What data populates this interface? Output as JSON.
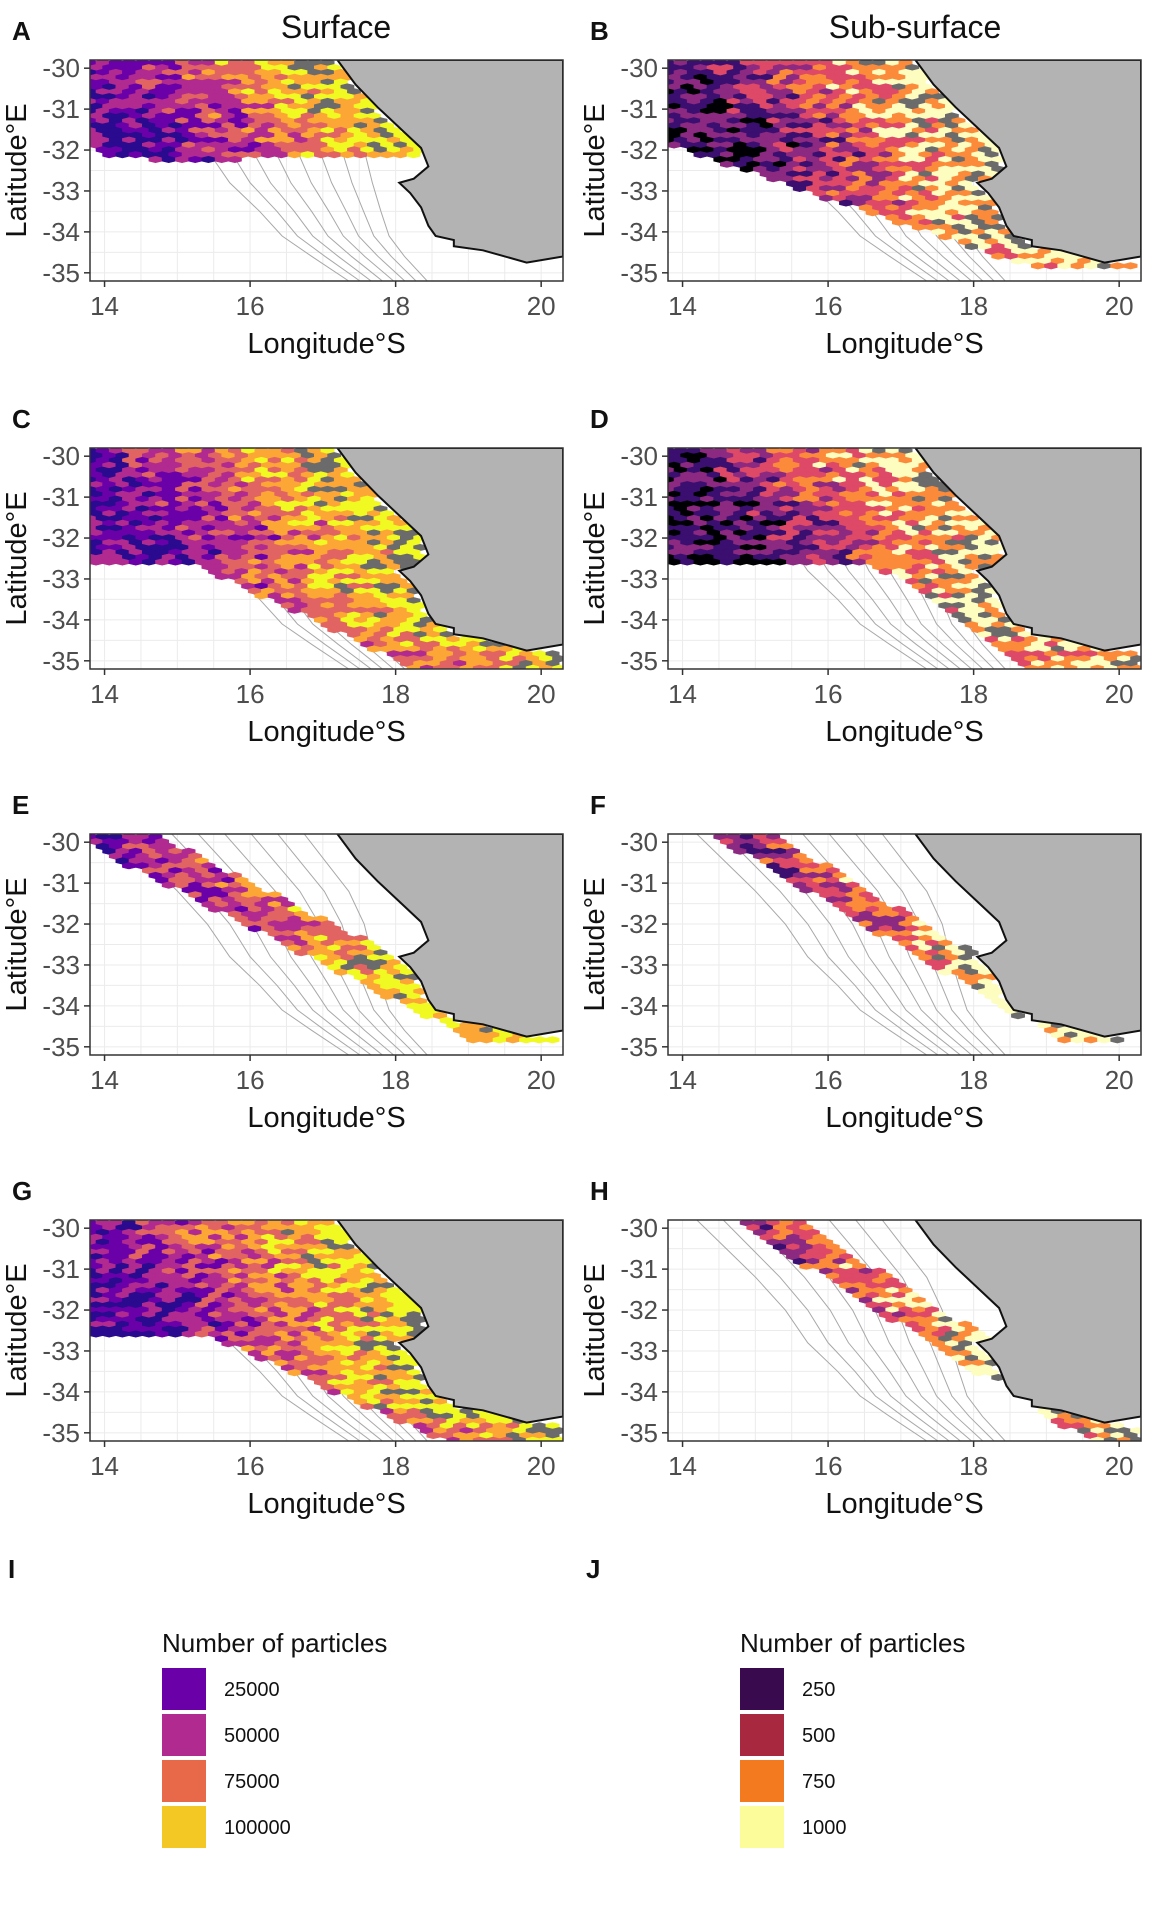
{
  "column_titles": [
    "Surface",
    "Sub-surface"
  ],
  "panels": [
    {
      "letter": "A",
      "palette": "surface",
      "layer": "surface",
      "scenario": 0
    },
    {
      "letter": "B",
      "palette": "subsurface",
      "layer": "subsurface",
      "scenario": 0
    },
    {
      "letter": "C",
      "palette": "surface",
      "layer": "surface",
      "scenario": 1
    },
    {
      "letter": "D",
      "palette": "subsurface",
      "layer": "subsurface",
      "scenario": 1
    },
    {
      "letter": "E",
      "palette": "surface",
      "layer": "surface",
      "scenario": 2
    },
    {
      "letter": "F",
      "palette": "subsurface",
      "layer": "subsurface",
      "scenario": 2
    },
    {
      "letter": "G",
      "palette": "surface",
      "layer": "surface",
      "scenario": 3
    },
    {
      "letter": "H",
      "palette": "subsurface",
      "layer": "subsurface",
      "scenario": 3
    }
  ],
  "axes": {
    "xlabel": "Longitude°S",
    "ylabel": "Latitude°E",
    "xlim": [
      13.8,
      20.3
    ],
    "ylim": [
      -35.2,
      -29.8
    ],
    "xticks": [
      14,
      16,
      18,
      20
    ],
    "yticks": [
      -30,
      -31,
      -32,
      -33,
      -34,
      -35
    ],
    "xtick_labels": [
      "14",
      "16",
      "18",
      "20"
    ],
    "ytick_labels": [
      "-30",
      "-31",
      "-32",
      "-33",
      "-34",
      "-35"
    ]
  },
  "colors": {
    "land": "#b3b3b3",
    "saturated": "#6b6b6b",
    "contour": "#a8a8a8",
    "grid": "#ebebeb",
    "surface_scale": [
      "#2a0a8f",
      "#6a00a8",
      "#b12a90",
      "#e16462",
      "#fca636",
      "#f0f921"
    ],
    "subsurface_scale": [
      "#000004",
      "#3b0f70",
      "#8c2981",
      "#de4968",
      "#fb8b3b",
      "#fcfdbf"
    ]
  },
  "legends": [
    {
      "letter": "I",
      "title": "Number of particles",
      "entries": [
        {
          "label": "25000",
          "color": "#6a00a8"
        },
        {
          "label": "50000",
          "color": "#b12a90"
        },
        {
          "label": "75000",
          "color": "#e8684a"
        },
        {
          "label": "100000",
          "color": "#f3c724"
        }
      ]
    },
    {
      "letter": "J",
      "title": "Number of particles",
      "entries": [
        {
          "label": "250",
          "color": "#3a0a4f"
        },
        {
          "label": "500",
          "color": "#a8283f"
        },
        {
          "label": "750",
          "color": "#f37a1f"
        },
        {
          "label": "1000",
          "color": "#fcfd9a"
        }
      ]
    }
  ]
}
